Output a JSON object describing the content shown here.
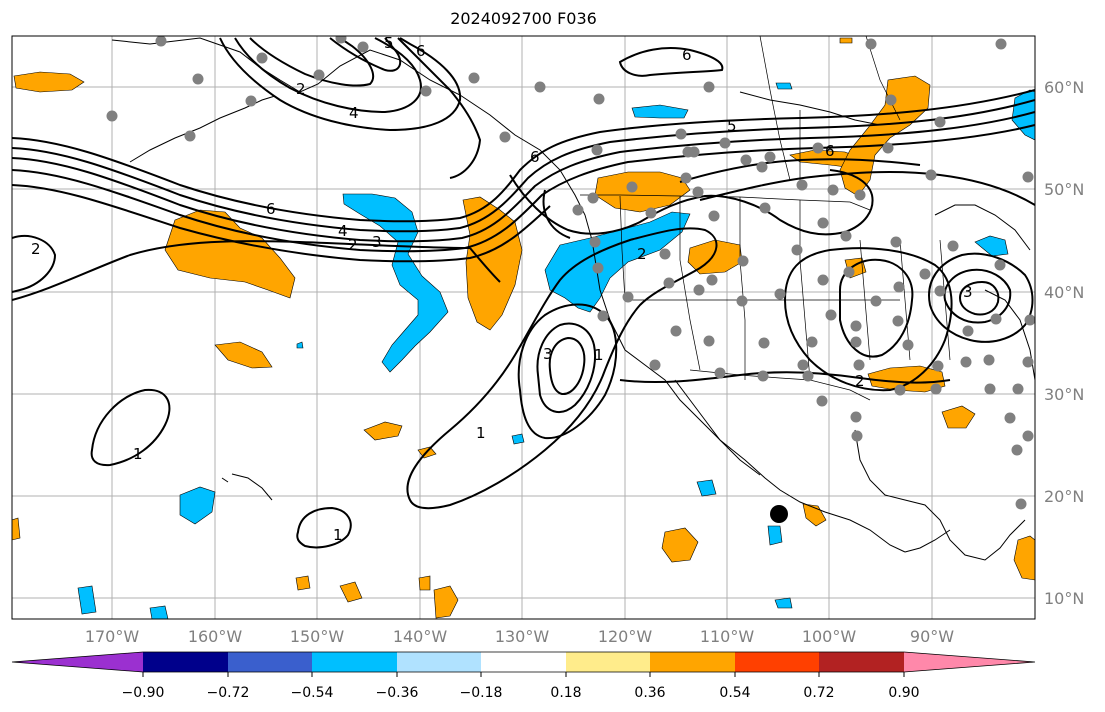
{
  "title": "2024092700 F036",
  "latitude_labels": [
    "60°N",
    "50°N",
    "40°N",
    "30°N",
    "20°N",
    "10°N"
  ],
  "longitude_labels": [
    "170°W",
    "160°W",
    "150°W",
    "140°W",
    "130°W",
    "120°W",
    "110°W",
    "100°W",
    "90°W"
  ],
  "colorbar": {
    "ticks": [
      "−0.90",
      "−0.72",
      "−0.54",
      "−0.36",
      "−0.18",
      "0.18",
      "0.36",
      "0.54",
      "0.72",
      "0.90"
    ],
    "colors": [
      "#9b30d0",
      "#00008b",
      "#3a5fcd",
      "#00bfff",
      "#b0e2ff",
      "#ffffff",
      "#ffec8b",
      "#ffa500",
      "#ff4000",
      "#b22222",
      "#ff88aa"
    ]
  },
  "fill_colors": {
    "positive": "#ffa500",
    "negative": "#00bfff",
    "station": "#808080",
    "marker": "#000000"
  },
  "contour_labels": [
    "2",
    "6",
    "4",
    "3",
    "2",
    "4",
    "6",
    "5",
    "5",
    "6",
    "6",
    "2",
    "3",
    "1",
    "1",
    "1",
    "1",
    "2",
    "2",
    "3",
    "6"
  ]
}
